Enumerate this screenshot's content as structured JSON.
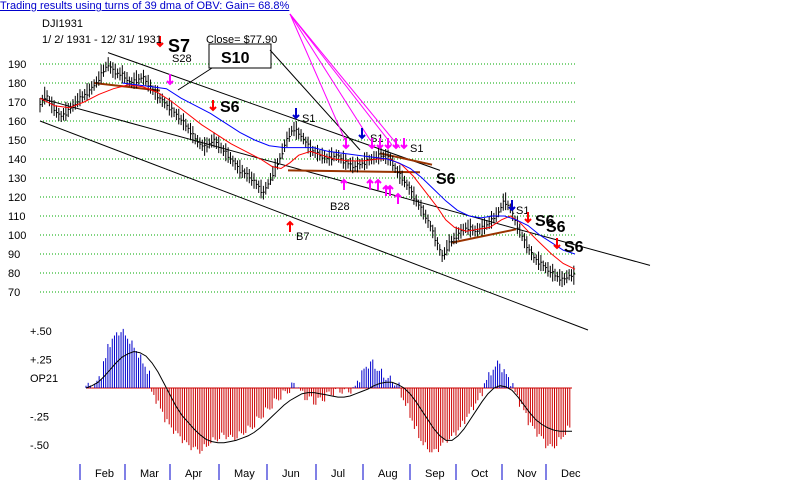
{
  "header": {
    "caption": "Trading results using turns of 39 dma of OBV: Gain= 68.8%",
    "symbol": "DJI1931",
    "date_range": "1/ 2/ 1931 -  12/ 31/ 1931",
    "close_label": "Close= $77.90"
  },
  "colors": {
    "price_bars": "#000000",
    "ma_red": "#ff0000",
    "ma_blue": "#0000ff",
    "channel": "#000000",
    "gridline": "#00aa00",
    "trend_brown": "#993300",
    "signal_magenta": "#ff00ff",
    "osc_positive": "#0000cc",
    "osc_negative": "#cc0000",
    "months_tick": "#0000cc",
    "caption_text": "#0000cc"
  },
  "chart_data": [
    {
      "type": "line",
      "panel": "price",
      "title": "DJI1931",
      "y_ticks": [
        70,
        80,
        90,
        100,
        110,
        120,
        130,
        140,
        150,
        160,
        170,
        180,
        190
      ],
      "ylim": [
        70,
        195
      ],
      "grid": true,
      "months": [
        "Feb",
        "Mar",
        "Apr",
        "May",
        "Jun",
        "Jul",
        "Aug",
        "Sep",
        "Oct",
        "Nov",
        "Dec"
      ],
      "price_path": [
        [
          0,
          168
        ],
        [
          4,
          174
        ],
        [
          8,
          168
        ],
        [
          14,
          162
        ],
        [
          20,
          166
        ],
        [
          26,
          171
        ],
        [
          34,
          176
        ],
        [
          40,
          182
        ],
        [
          46,
          190
        ],
        [
          50,
          186
        ],
        [
          56,
          184
        ],
        [
          62,
          180
        ],
        [
          70,
          183
        ],
        [
          78,
          175
        ],
        [
          84,
          170
        ],
        [
          92,
          164
        ],
        [
          100,
          157
        ],
        [
          106,
          150
        ],
        [
          112,
          146
        ],
        [
          118,
          150
        ],
        [
          124,
          145
        ],
        [
          130,
          140
        ],
        [
          136,
          134
        ],
        [
          142,
          131
        ],
        [
          148,
          126
        ],
        [
          152,
          122
        ],
        [
          156,
          128
        ],
        [
          162,
          138
        ],
        [
          168,
          150
        ],
        [
          172,
          156
        ],
        [
          178,
          152
        ],
        [
          184,
          145
        ],
        [
          190,
          142
        ],
        [
          196,
          140
        ],
        [
          202,
          142
        ],
        [
          208,
          138
        ],
        [
          214,
          136
        ],
        [
          220,
          138
        ],
        [
          226,
          140
        ],
        [
          232,
          142
        ],
        [
          238,
          140
        ],
        [
          244,
          132
        ],
        [
          250,
          126
        ],
        [
          256,
          118
        ],
        [
          262,
          110
        ],
        [
          266,
          104
        ],
        [
          270,
          96
        ],
        [
          274,
          88
        ],
        [
          278,
          95
        ],
        [
          284,
          100
        ],
        [
          290,
          104
        ],
        [
          296,
          102
        ],
        [
          302,
          104
        ],
        [
          308,
          108
        ],
        [
          312,
          112
        ],
        [
          316,
          118
        ],
        [
          320,
          114
        ],
        [
          324,
          106
        ],
        [
          330,
          96
        ],
        [
          336,
          88
        ],
        [
          342,
          84
        ],
        [
          348,
          80
        ],
        [
          352,
          78
        ],
        [
          356,
          76
        ],
        [
          360,
          79
        ],
        [
          364,
          78
        ]
      ],
      "ma_red": [
        [
          0,
          172
        ],
        [
          10,
          168
        ],
        [
          20,
          167
        ],
        [
          30,
          170
        ],
        [
          40,
          174
        ],
        [
          50,
          177
        ],
        [
          60,
          179
        ],
        [
          70,
          178
        ],
        [
          80,
          175
        ],
        [
          90,
          170
        ],
        [
          100,
          164
        ],
        [
          110,
          158
        ],
        [
          120,
          153
        ],
        [
          130,
          148
        ],
        [
          140,
          144
        ],
        [
          150,
          140
        ],
        [
          158,
          136
        ],
        [
          164,
          135
        ],
        [
          170,
          138
        ],
        [
          176,
          142
        ],
        [
          184,
          144
        ],
        [
          192,
          142
        ],
        [
          200,
          140
        ],
        [
          210,
          139
        ],
        [
          220,
          139
        ],
        [
          230,
          140
        ],
        [
          238,
          140
        ],
        [
          246,
          137
        ],
        [
          254,
          131
        ],
        [
          262,
          123
        ],
        [
          270,
          115
        ],
        [
          276,
          108
        ],
        [
          282,
          104
        ],
        [
          290,
          102
        ],
        [
          298,
          103
        ],
        [
          306,
          104
        ],
        [
          314,
          108
        ],
        [
          320,
          110
        ],
        [
          326,
          107
        ],
        [
          332,
          102
        ],
        [
          340,
          96
        ],
        [
          348,
          90
        ],
        [
          356,
          85
        ],
        [
          364,
          82
        ]
      ],
      "ma_blue": [
        [
          56,
          180
        ],
        [
          66,
          179
        ],
        [
          76,
          178
        ],
        [
          86,
          177
        ],
        [
          96,
          172
        ],
        [
          106,
          168
        ],
        [
          116,
          164
        ],
        [
          126,
          159
        ],
        [
          136,
          154
        ],
        [
          146,
          150
        ],
        [
          156,
          147
        ],
        [
          166,
          146
        ],
        [
          176,
          146
        ],
        [
          186,
          146
        ],
        [
          196,
          144
        ],
        [
          206,
          143
        ],
        [
          216,
          142
        ],
        [
          226,
          141
        ],
        [
          236,
          140
        ],
        [
          244,
          138
        ],
        [
          252,
          135
        ],
        [
          260,
          130
        ],
        [
          268,
          124
        ],
        [
          276,
          118
        ],
        [
          284,
          113
        ],
        [
          292,
          110
        ],
        [
          300,
          109
        ],
        [
          308,
          110
        ],
        [
          316,
          110
        ],
        [
          324,
          108
        ],
        [
          332,
          105
        ],
        [
          340,
          100
        ],
        [
          348,
          96
        ],
        [
          356,
          92
        ],
        [
          364,
          90
        ]
      ],
      "annotations": [
        "S7",
        "S28",
        "S10",
        "S6",
        "S1",
        "S1",
        "S1",
        "S6",
        "B28",
        "B7",
        "S1",
        "S6",
        "S6",
        "S6"
      ]
    },
    {
      "type": "bar",
      "panel": "oscillator",
      "title": "OP21",
      "y_ticks": [
        0.5,
        0.25,
        -0.25,
        -0.5
      ],
      "y_tick_labels": [
        "+.50",
        "+.25",
        "-.25",
        "-.50"
      ],
      "ylim": [
        -0.62,
        0.56
      ],
      "values": [
        0.02,
        0.02,
        0.04,
        0.1,
        0.24,
        0.38,
        0.44,
        0.48,
        0.5,
        0.45,
        0.4,
        0.34,
        0.28,
        0.2,
        0.14,
        -0.05,
        -0.12,
        -0.2,
        -0.28,
        -0.34,
        -0.38,
        -0.42,
        -0.46,
        -0.5,
        -0.52,
        -0.54,
        -0.55,
        -0.52,
        -0.48,
        -0.46,
        -0.44,
        -0.42,
        -0.42,
        -0.44,
        -0.43,
        -0.41,
        -0.38,
        -0.36,
        -0.33,
        -0.28,
        -0.24,
        -0.2,
        -0.16,
        -0.12,
        -0.08,
        -0.05,
        -0.02,
        0.02,
        0.03,
        -0.05,
        -0.08,
        -0.1,
        -0.12,
        -0.11,
        -0.09,
        -0.06,
        -0.04,
        -0.03,
        -0.02,
        -0.03,
        -0.02,
        -0.01,
        0.08,
        0.14,
        0.2,
        0.22,
        0.18,
        0.14,
        0.1,
        0.08,
        0.05,
        0.02,
        -0.08,
        -0.16,
        -0.26,
        -0.36,
        -0.44,
        -0.5,
        -0.54,
        -0.56,
        -0.54,
        -0.5,
        -0.46,
        -0.44,
        -0.4,
        -0.36,
        -0.3,
        -0.24,
        -0.18,
        -0.12,
        -0.06,
        0.06,
        0.12,
        0.18,
        0.22,
        0.16,
        0.1,
        0.04,
        -0.06,
        -0.14,
        -0.22,
        -0.3,
        -0.36,
        -0.4,
        -0.45,
        -0.5,
        -0.52,
        -0.5,
        -0.46,
        -0.4,
        -0.36
      ],
      "ma_black": [
        0,
        0.02,
        0.05,
        0.1,
        0.16,
        0.22,
        0.27,
        0.3,
        0.32,
        0.31,
        0.28,
        0.22,
        0.14,
        0.04,
        -0.06,
        -0.16,
        -0.24,
        -0.3,
        -0.36,
        -0.41,
        -0.45,
        -0.47,
        -0.48,
        -0.48,
        -0.47,
        -0.46,
        -0.44,
        -0.42,
        -0.39,
        -0.35,
        -0.3,
        -0.25,
        -0.2,
        -0.15,
        -0.11,
        -0.08,
        -0.05,
        -0.04,
        -0.04,
        -0.05,
        -0.06,
        -0.07,
        -0.08,
        -0.08,
        -0.07,
        -0.05,
        -0.03,
        -0.01,
        0.02,
        0.04,
        0.05,
        0.05,
        0.03,
        0.0,
        -0.05,
        -0.12,
        -0.2,
        -0.28,
        -0.36,
        -0.42,
        -0.46,
        -0.46,
        -0.42,
        -0.36,
        -0.28,
        -0.2,
        -0.12,
        -0.05,
        0.0,
        0.02,
        0.01,
        -0.02,
        -0.08,
        -0.15,
        -0.22,
        -0.28,
        -0.32,
        -0.35,
        -0.37,
        -0.38,
        -0.38,
        -0.38
      ]
    }
  ]
}
